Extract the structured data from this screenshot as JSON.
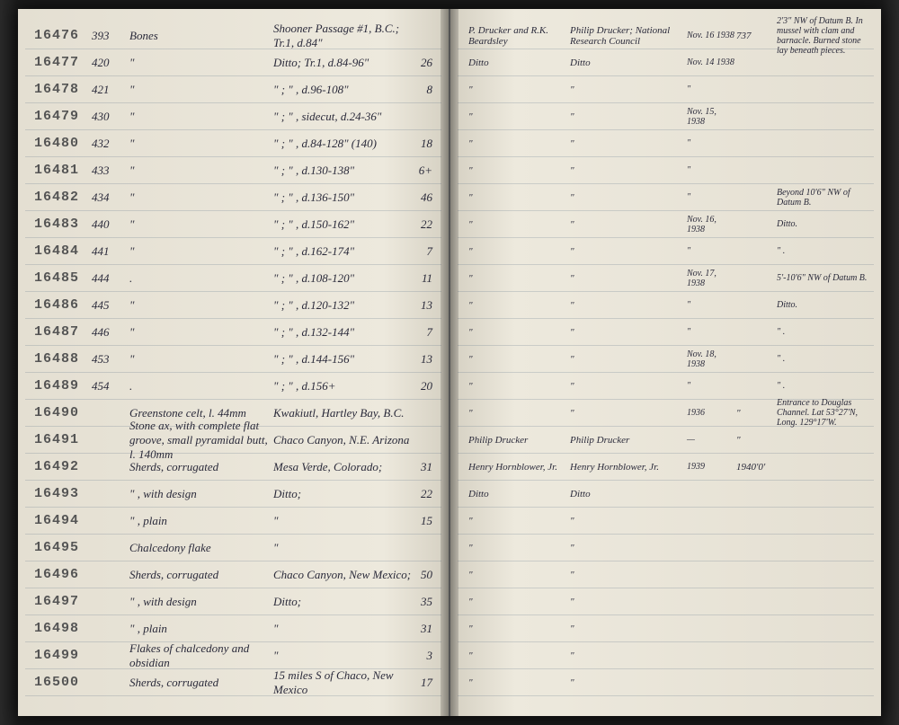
{
  "left": {
    "rows": [
      {
        "stamp": "16476",
        "num": "393",
        "desc": "Bones",
        "loc": "Shooner Passage #1, B.C.; Tr.1, d.84\"",
        "qty": ""
      },
      {
        "stamp": "16477",
        "num": "420",
        "desc": "\"",
        "loc": "Ditto; Tr.1, d.84-96\"",
        "qty": "26"
      },
      {
        "stamp": "16478",
        "num": "421",
        "desc": "\"",
        "loc": "\"  ;  \" , d.96-108\"",
        "qty": "8"
      },
      {
        "stamp": "16479",
        "num": "430",
        "desc": "\"",
        "loc": "\"  ;  \" , sidecut, d.24-36\"",
        "qty": ""
      },
      {
        "stamp": "16480",
        "num": "432",
        "desc": "\"",
        "loc": "\"  ;  \" , d.84-128\" (140)",
        "qty": "18"
      },
      {
        "stamp": "16481",
        "num": "433",
        "desc": "\"",
        "loc": "\"  ;  \" , d.130-138\"",
        "qty": "6+"
      },
      {
        "stamp": "16482",
        "num": "434",
        "desc": "\"",
        "loc": "\"  ;  \" , d.136-150\"",
        "qty": "46"
      },
      {
        "stamp": "16483",
        "num": "440",
        "desc": "\"",
        "loc": "\"  ;  \" , d.150-162\"",
        "qty": "22"
      },
      {
        "stamp": "16484",
        "num": "441",
        "desc": "\"",
        "loc": "\"  ;  \" , d.162-174\"",
        "qty": "7"
      },
      {
        "stamp": "16485",
        "num": "444",
        "desc": ".",
        "loc": "\"  ;  \" , d.108-120\"",
        "qty": "11"
      },
      {
        "stamp": "16486",
        "num": "445",
        "desc": "\"",
        "loc": "\"  ;  \" , d.120-132\"",
        "qty": "13"
      },
      {
        "stamp": "16487",
        "num": "446",
        "desc": "\"",
        "loc": "\"  ;  \" , d.132-144\"",
        "qty": "7"
      },
      {
        "stamp": "16488",
        "num": "453",
        "desc": "\"",
        "loc": "\"  ;  \" , d.144-156\"",
        "qty": "13"
      },
      {
        "stamp": "16489",
        "num": "454",
        "desc": ".",
        "loc": "\"  ;  \" , d.156+",
        "qty": "20"
      },
      {
        "stamp": "16490",
        "num": "",
        "desc": "Greenstone celt, l. 44mm",
        "loc": "Kwakiutl, Hartley Bay, B.C.",
        "qty": ""
      },
      {
        "stamp": "16491",
        "num": "",
        "desc": "Stone ax, with complete flat groove, small pyramidal butt, l. 140mm",
        "loc": "Chaco Canyon, N.E. Arizona",
        "qty": ""
      },
      {
        "stamp": "16492",
        "num": "",
        "desc": "Sherds, corrugated",
        "loc": "Mesa Verde, Colorado;",
        "qty": "31"
      },
      {
        "stamp": "16493",
        "num": "",
        "desc": "\"   , with design",
        "loc": "Ditto;",
        "qty": "22"
      },
      {
        "stamp": "16494",
        "num": "",
        "desc": "\"   , plain",
        "loc": "\"",
        "qty": "15"
      },
      {
        "stamp": "16495",
        "num": "",
        "desc": "Chalcedony flake",
        "loc": "\"",
        "qty": ""
      },
      {
        "stamp": "16496",
        "num": "",
        "desc": "Sherds, corrugated",
        "loc": "Chaco Canyon, New Mexico;",
        "qty": "50"
      },
      {
        "stamp": "16497",
        "num": "",
        "desc": "\"   , with design",
        "loc": "Ditto;",
        "qty": "35"
      },
      {
        "stamp": "16498",
        "num": "",
        "desc": "\"   , plain",
        "loc": "\"",
        "qty": "31"
      },
      {
        "stamp": "16499",
        "num": "",
        "desc": "Flakes of chalcedony and obsidian",
        "loc": "\"",
        "qty": "3"
      },
      {
        "stamp": "16500",
        "num": "",
        "desc": "Sherds, corrugated",
        "loc": "15 miles S of Chaco, New Mexico",
        "qty": "17"
      }
    ]
  },
  "right": {
    "rows": [
      {
        "c1": "P. Drucker and R.K. Beardsley",
        "c2": "Philip Drucker; National Research Council",
        "c3": "Nov. 16 1938",
        "c4": "737",
        "c5": "2'3\" NW of Datum B. In mussel with clam and barnacle. Burned stone lay beneath pieces."
      },
      {
        "c1": "Ditto",
        "c2": "Ditto",
        "c3": "Nov. 14 1938",
        "c4": "",
        "c5": ""
      },
      {
        "c1": "\"",
        "c2": "\"",
        "c3": "\"",
        "c4": "",
        "c5": ""
      },
      {
        "c1": "\"",
        "c2": "\"",
        "c3": "Nov. 15, 1938",
        "c4": "",
        "c5": ""
      },
      {
        "c1": "\"",
        "c2": "\"",
        "c3": "\"",
        "c4": "",
        "c5": ""
      },
      {
        "c1": "\"",
        "c2": "\"",
        "c3": "\"",
        "c4": "",
        "c5": ""
      },
      {
        "c1": "\"",
        "c2": "\"",
        "c3": "\"",
        "c4": "",
        "c5": "Beyond 10'6\" NW of Datum B."
      },
      {
        "c1": "\"",
        "c2": "\"",
        "c3": "Nov. 16, 1938",
        "c4": "",
        "c5": "Ditto."
      },
      {
        "c1": "\"",
        "c2": "\"",
        "c3": "\"",
        "c4": "",
        "c5": "\"   ."
      },
      {
        "c1": "\"",
        "c2": "\"",
        "c3": "Nov. 17, 1938",
        "c4": "",
        "c5": "5'-10'6\" NW of Datum B."
      },
      {
        "c1": "\"",
        "c2": "\"",
        "c3": "\"",
        "c4": "",
        "c5": "Ditto."
      },
      {
        "c1": "\"",
        "c2": "\"",
        "c3": "\"",
        "c4": "",
        "c5": "\"   ."
      },
      {
        "c1": "\"",
        "c2": "\"",
        "c3": "Nov. 18, 1938",
        "c4": "",
        "c5": "\"   ."
      },
      {
        "c1": "\"",
        "c2": "\"",
        "c3": "\"",
        "c4": "",
        "c5": "\"   ."
      },
      {
        "c1": "\"",
        "c2": "\"",
        "c3": "1936",
        "c4": "\"",
        "c5": "Entrance to Douglas Channel. Lat 53°27'N, Long. 129°17'W."
      },
      {
        "c1": "Philip Drucker",
        "c2": "Philip Drucker",
        "c3": "—",
        "c4": "\"",
        "c5": ""
      },
      {
        "c1": "Henry Hornblower, Jr.",
        "c2": "Henry Hornblower, Jr.",
        "c3": "1939",
        "c4": "1940'0'",
        "c5": ""
      },
      {
        "c1": "Ditto",
        "c2": "Ditto",
        "c3": "",
        "c4": "",
        "c5": ""
      },
      {
        "c1": "\"",
        "c2": "\"",
        "c3": "",
        "c4": "",
        "c5": ""
      },
      {
        "c1": "\"",
        "c2": "\"",
        "c3": "",
        "c4": "",
        "c5": ""
      },
      {
        "c1": "\"",
        "c2": "\"",
        "c3": "",
        "c4": "",
        "c5": ""
      },
      {
        "c1": "\"",
        "c2": "\"",
        "c3": "",
        "c4": "",
        "c5": ""
      },
      {
        "c1": "\"",
        "c2": "\"",
        "c3": "",
        "c4": "",
        "c5": ""
      },
      {
        "c1": "\"",
        "c2": "\"",
        "c3": "",
        "c4": "",
        "c5": ""
      },
      {
        "c1": "\"",
        "c2": "\"",
        "c3": "",
        "c4": "",
        "c5": ""
      }
    ]
  }
}
